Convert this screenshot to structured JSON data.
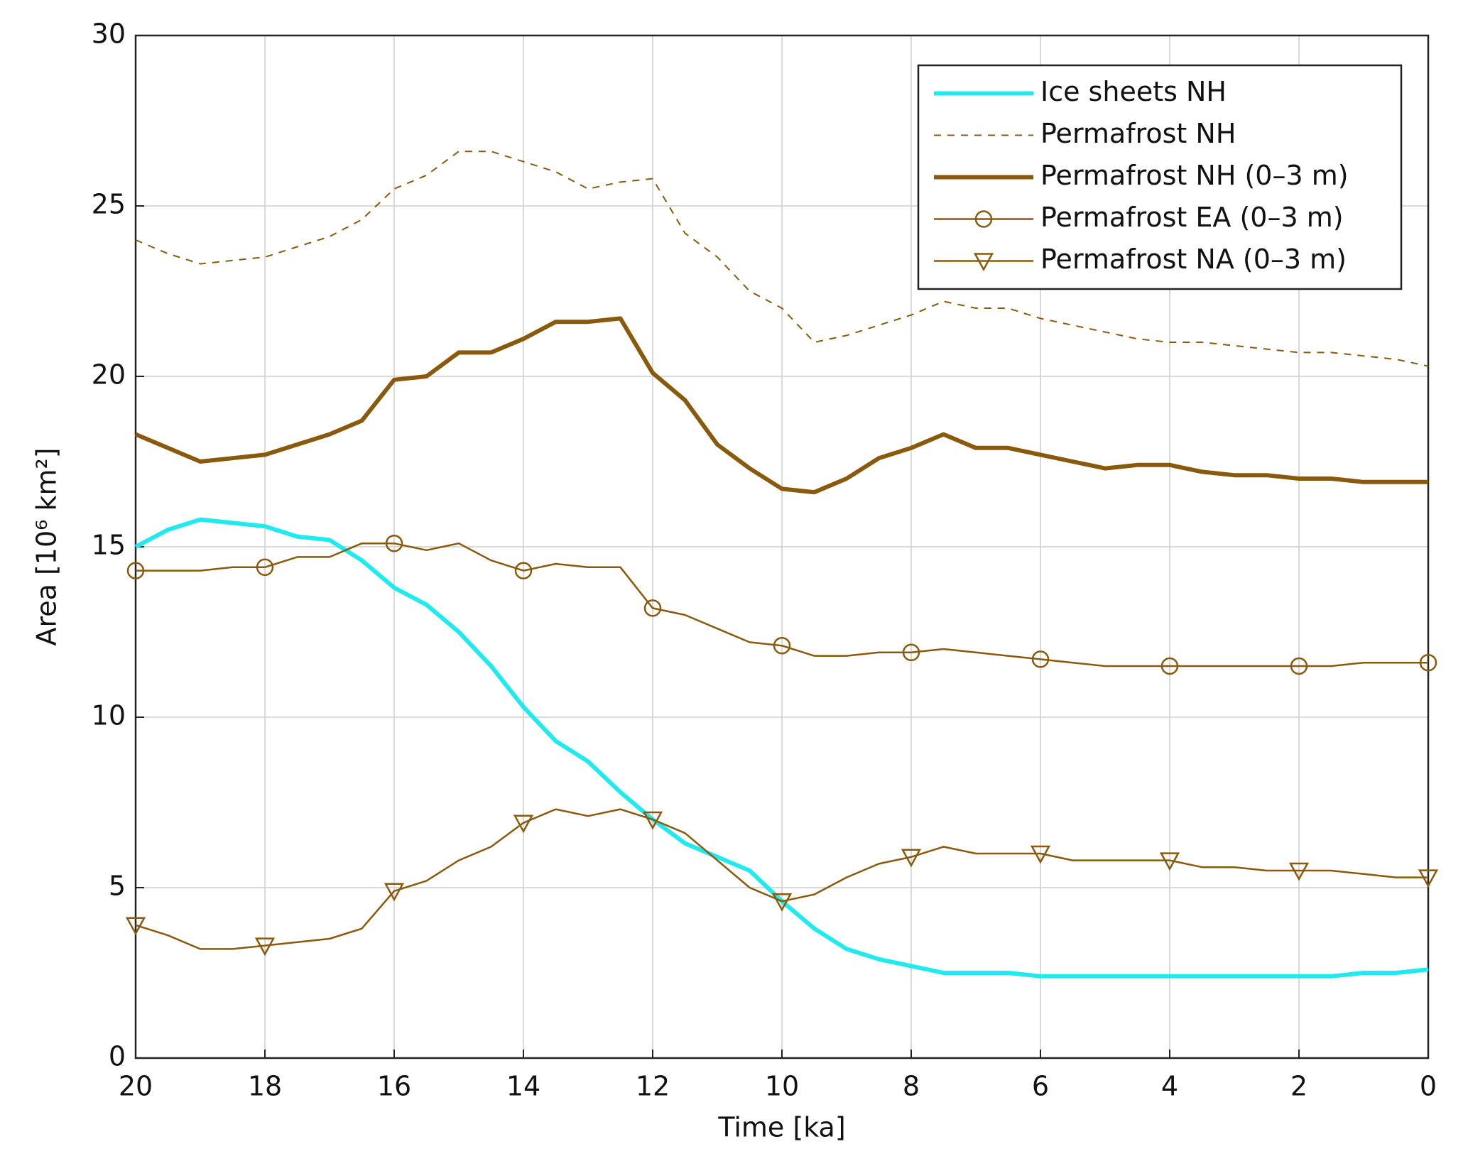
{
  "chart_data": {
    "type": "line",
    "xlabel": "Time  [ka]",
    "ylabel": "Area [10⁶ km²]",
    "x": [
      20,
      19.5,
      19,
      18.5,
      18,
      17.5,
      17,
      16.5,
      16,
      15.5,
      15,
      14.5,
      14,
      13.5,
      13,
      12.5,
      12,
      11.5,
      11,
      10.5,
      10,
      9.5,
      9,
      8.5,
      8,
      7.5,
      7,
      6.5,
      6,
      5.5,
      5,
      4.5,
      4,
      3.5,
      3,
      2.5,
      2,
      1.5,
      1,
      0.5,
      0
    ],
    "xlim": [
      20,
      0
    ],
    "xticks": [
      20,
      18,
      16,
      14,
      12,
      10,
      8,
      6,
      4,
      2,
      0
    ],
    "ylim": [
      0,
      30
    ],
    "yticks": [
      0,
      5,
      10,
      15,
      20,
      25,
      30
    ],
    "grid": true,
    "legend": "upper right",
    "series": [
      {
        "name": "Ice sheets NH",
        "color": "#1eeaf0",
        "linestyle": "solid",
        "linewidth": 6,
        "marker": "none",
        "values": [
          15.0,
          15.5,
          15.8,
          15.7,
          15.6,
          15.3,
          15.2,
          14.6,
          13.8,
          13.3,
          12.5,
          11.5,
          10.3,
          9.3,
          8.7,
          7.8,
          7.0,
          6.3,
          5.9,
          5.5,
          4.6,
          3.8,
          3.2,
          2.9,
          2.7,
          2.5,
          2.5,
          2.5,
          2.4,
          2.4,
          2.4,
          2.4,
          2.4,
          2.4,
          2.4,
          2.4,
          2.4,
          2.4,
          2.5,
          2.5,
          2.6
        ]
      },
      {
        "name": "Permafrost NH",
        "color": "#8a5a0c",
        "linestyle": "dashed",
        "linewidth": 2,
        "marker": "none",
        "values": [
          24.0,
          23.6,
          23.3,
          23.4,
          23.5,
          23.8,
          24.1,
          24.6,
          25.5,
          25.9,
          26.6,
          26.6,
          26.3,
          26.0,
          25.5,
          25.7,
          25.8,
          24.2,
          23.5,
          22.5,
          22.0,
          21.0,
          21.2,
          21.5,
          21.8,
          22.2,
          22.0,
          22.0,
          21.7,
          21.5,
          21.3,
          21.1,
          21.0,
          21.0,
          20.9,
          20.8,
          20.7,
          20.7,
          20.6,
          20.5,
          20.3
        ]
      },
      {
        "name": "Permafrost NH (0–3 m)",
        "color": "#8a5a0c",
        "linestyle": "solid",
        "linewidth": 6,
        "marker": "none",
        "values": [
          18.3,
          17.9,
          17.5,
          17.6,
          17.7,
          18.0,
          18.3,
          18.7,
          19.9,
          20.0,
          20.7,
          20.7,
          21.1,
          21.6,
          21.6,
          21.7,
          20.1,
          19.3,
          18.0,
          17.3,
          16.7,
          16.6,
          17.0,
          17.6,
          17.9,
          18.3,
          17.9,
          17.9,
          17.7,
          17.5,
          17.3,
          17.4,
          17.4,
          17.2,
          17.1,
          17.1,
          17.0,
          17.0,
          16.9,
          16.9,
          16.9
        ]
      },
      {
        "name": "Permafrost EA (0–3 m)",
        "color": "#8a5a0c",
        "linestyle": "solid",
        "linewidth": 2.5,
        "marker": "circle",
        "values": [
          14.3,
          14.3,
          14.3,
          14.4,
          14.4,
          14.7,
          14.7,
          15.1,
          15.1,
          14.9,
          15.1,
          14.6,
          14.3,
          14.5,
          14.4,
          14.4,
          13.2,
          13.0,
          12.6,
          12.2,
          12.1,
          11.8,
          11.8,
          11.9,
          11.9,
          12.0,
          11.9,
          11.8,
          11.7,
          11.6,
          11.5,
          11.5,
          11.5,
          11.5,
          11.5,
          11.5,
          11.5,
          11.5,
          11.6,
          11.6,
          11.6
        ]
      },
      {
        "name": "Permafrost NA (0–3 m)",
        "color": "#8a5a0c",
        "linestyle": "solid",
        "linewidth": 2.5,
        "marker": "triangle-down",
        "values": [
          3.9,
          3.6,
          3.2,
          3.2,
          3.3,
          3.4,
          3.5,
          3.8,
          4.9,
          5.2,
          5.8,
          6.2,
          6.9,
          7.3,
          7.1,
          7.3,
          7.0,
          6.6,
          5.8,
          5.0,
          4.6,
          4.8,
          5.3,
          5.7,
          5.9,
          6.2,
          6.0,
          6.0,
          6.0,
          5.8,
          5.8,
          5.8,
          5.8,
          5.6,
          5.6,
          5.5,
          5.5,
          5.5,
          5.4,
          5.3,
          5.3
        ]
      }
    ]
  }
}
